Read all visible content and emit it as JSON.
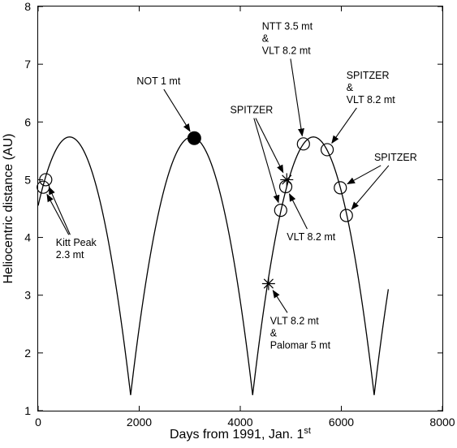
{
  "chart_data": {
    "type": "scatter",
    "title": "",
    "xlabel": "Days from 1991, Jan. 1",
    "xlabel_superscript": "st",
    "ylabel": "Heliocentric distance (AU)",
    "xlim": [
      0,
      8000
    ],
    "ylim": [
      1,
      8
    ],
    "xticks": [
      0,
      2000,
      4000,
      6000,
      8000
    ],
    "yticks": [
      1,
      2,
      3,
      4,
      5,
      6,
      7,
      8
    ],
    "grid": false,
    "orbit": {
      "name": "",
      "perihelion_distance": 1.27,
      "aphelion_distance": 5.74,
      "perihelion_days": [
        1830,
        4245,
        6650
      ],
      "start_day": 0,
      "end_day": 6930
    },
    "points": [
      {
        "x": 100,
        "y": 4.87,
        "marker": "open-circle"
      },
      {
        "x": 150,
        "y": 5.0,
        "marker": "open-circle"
      },
      {
        "x": 3090,
        "y": 5.72,
        "marker": "filled-circle"
      },
      {
        "x": 4560,
        "y": 3.2,
        "marker": "star"
      },
      {
        "x": 4800,
        "y": 4.47,
        "marker": "open-circle"
      },
      {
        "x": 4900,
        "y": 4.88,
        "marker": "open-circle"
      },
      {
        "x": 4920,
        "y": 5.0,
        "marker": "star"
      },
      {
        "x": 5250,
        "y": 5.62,
        "marker": "open-circle"
      },
      {
        "x": 5720,
        "y": 5.52,
        "marker": "open-circle"
      },
      {
        "x": 5980,
        "y": 4.86,
        "marker": "open-circle"
      },
      {
        "x": 6100,
        "y": 4.38,
        "marker": "open-circle"
      }
    ],
    "annotations": [
      {
        "lines": [
          "Kitt Peak",
          "2.3 mt"
        ],
        "x": 350,
        "y": 3.85,
        "anchor": "start",
        "arrows_to": [
          0,
          1
        ]
      },
      {
        "lines": [
          "NOT 1 mt"
        ],
        "x": 1950,
        "y": 6.65,
        "anchor": "start",
        "arrows_to": [
          2
        ]
      },
      {
        "lines": [
          "SPITZER"
        ],
        "x": 3800,
        "y": 6.15,
        "anchor": "start",
        "arrows_to": [
          4,
          6
        ]
      },
      {
        "lines": [
          "NTT 3.5 mt",
          "&",
          "VLT 8.2 mt"
        ],
        "x": 4430,
        "y": 7.6,
        "anchor": "start",
        "arrows_to": [
          7
        ]
      },
      {
        "lines": [
          "SPITZER",
          "&",
          "VLT 8.2 mt"
        ],
        "x": 6100,
        "y": 6.75,
        "anchor": "start",
        "arrows_to": [
          8
        ]
      },
      {
        "lines": [
          "SPITZER"
        ],
        "x": 6650,
        "y": 5.33,
        "anchor": "start",
        "arrows_to": [
          9,
          10
        ]
      },
      {
        "lines": [
          "VLT 8.2 mt"
        ],
        "x": 4920,
        "y": 3.95,
        "anchor": "start",
        "arrows_to": [
          5
        ]
      },
      {
        "lines": [
          "VLT 8.2 mt",
          "&",
          "Palomar 5 mt"
        ],
        "x": 4590,
        "y": 2.5,
        "anchor": "start",
        "arrows_to": [
          3
        ]
      }
    ]
  }
}
